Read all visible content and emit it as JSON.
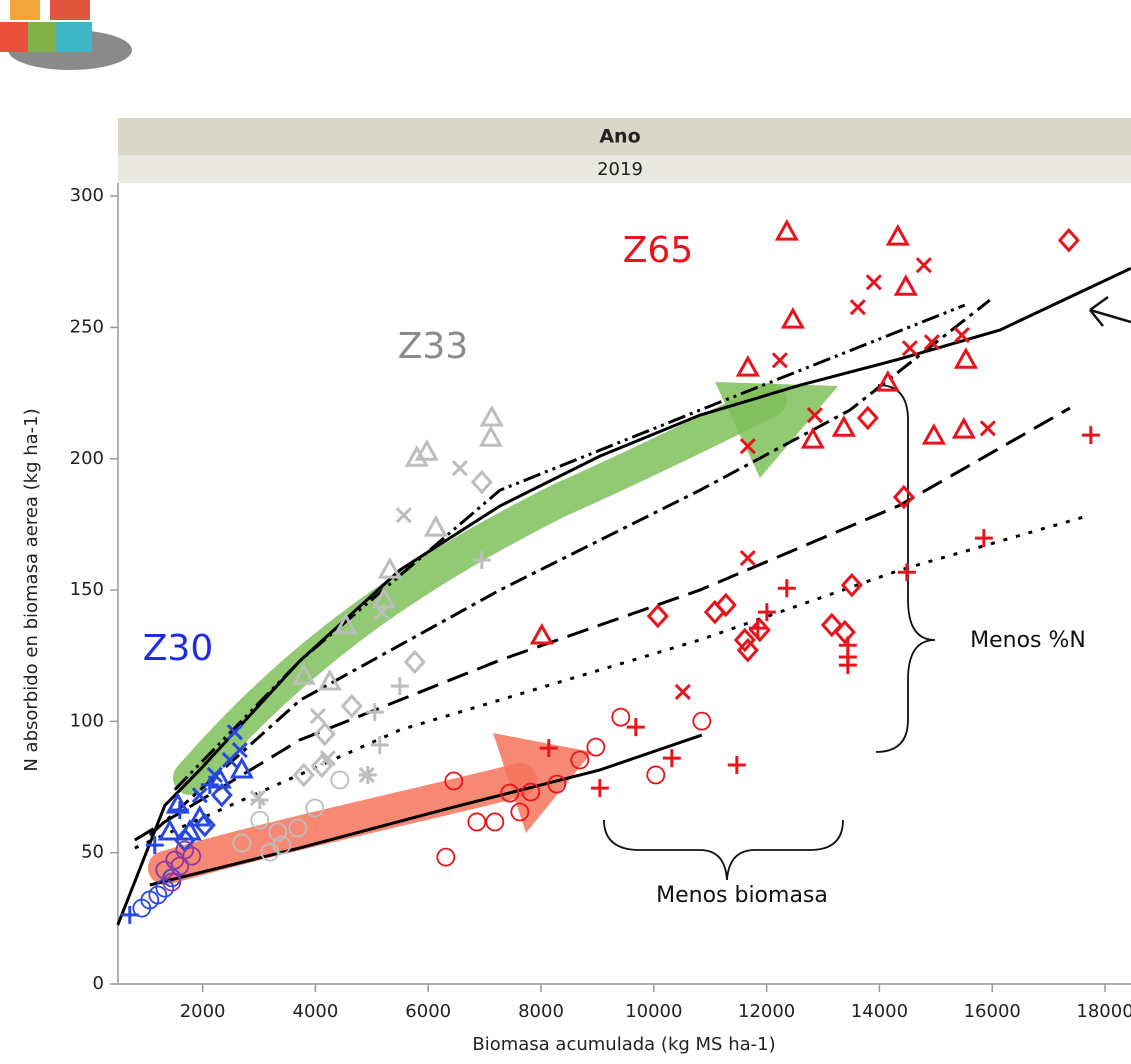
{
  "chart_data": {
    "type": "scatter",
    "facet_title": "Ano",
    "facet_label": "2019",
    "x_label": "Biomasa acumulada (kg MS ha-1)",
    "y_label": "N absorbido en biomasa aerea (kg ha-1)",
    "annotations": [
      {
        "text": "Z65",
        "color": "#e8141c"
      },
      {
        "text": "Z33",
        "color": "#8a8a8a"
      },
      {
        "text": "Z30",
        "color": "#1f2be0"
      },
      {
        "text": "Menos %N",
        "color": "#111111"
      },
      {
        "text": "Menos biomasa",
        "color": "#111111"
      }
    ],
    "xlim": [
      500,
      18460
    ],
    "ylim": [
      0,
      305
    ],
    "xticks": [
      2000,
      4000,
      6000,
      8000,
      10000,
      12000,
      14000,
      16000,
      18000
    ],
    "yticks": [
      0,
      50,
      100,
      150,
      200,
      250,
      300
    ],
    "series": [
      {
        "marker": "triangle",
        "color": "#e8141c",
        "x": [
          12358,
          14326,
          14468,
          12465,
          15532,
          11667,
          14149,
          12819,
          13369,
          14965,
          15496,
          8014
        ],
        "values": [
          286.3,
          284.4,
          265.3,
          252.8,
          237.5,
          234.5,
          228.8,
          207.1,
          211.6,
          208.6,
          210.9,
          132.5
        ]
      },
      {
        "marker": "x",
        "color": "#e8141c",
        "x": [
          14787,
          13901,
          13617,
          12234,
          12855,
          14539,
          14929,
          15461,
          15922,
          11667,
          10514,
          11667
        ],
        "values": [
          273.7,
          267.2,
          257.7,
          237.5,
          216.6,
          242.1,
          244.4,
          247.1,
          211.6,
          162.2,
          111.2,
          204.8
        ]
      },
      {
        "marker": "diamond",
        "color": "#e8141c",
        "x": [
          17358,
          13794,
          14433,
          13511,
          10071,
          11082,
          11277,
          11613,
          11667,
          11879,
          13156,
          13387
        ],
        "values": [
          283.2,
          215.5,
          185.4,
          151.9,
          140.1,
          141.6,
          144.3,
          131,
          127.1,
          134.8,
          136.7,
          134
        ]
      },
      {
        "marker": "plus",
        "color": "#e8141c",
        "x": [
          17748,
          15851,
          14486,
          12358,
          12004,
          11844,
          13440,
          13440,
          13440,
          9681,
          10319,
          8138,
          11472,
          9043
        ],
        "values": [
          209,
          169.8,
          156.8,
          150.7,
          141.6,
          135.5,
          129,
          124.5,
          121.4,
          97.8,
          86,
          89.8,
          83.4,
          74.6
        ]
      },
      {
        "marker": "circle",
        "color": "#e8141c",
        "x": [
          9415,
          10851,
          8972,
          8688,
          10035,
          6454,
          8280,
          7447,
          7819,
          7624,
          6862,
          7181,
          6312
        ],
        "values": [
          101.6,
          100.1,
          90.2,
          85.3,
          79.6,
          77.3,
          76.1,
          72.7,
          73.1,
          65.5,
          61.7,
          61.7,
          48.3
        ]
      },
      {
        "marker": "triangle",
        "color": "#bdbdbd",
        "x": [
          7128,
          7110,
          5975,
          5798,
          6135,
          5319,
          5213,
          4539,
          4255,
          3794
        ],
        "values": [
          215.5,
          207.8,
          202.5,
          200.2,
          173.6,
          157.6,
          146.2,
          136.3,
          115,
          117.2
        ]
      },
      {
        "marker": "x",
        "color": "#bdbdbd",
        "x": [
          6560,
          5567,
          5177,
          4043,
          4220,
          4911,
          2979
        ],
        "values": [
          196.4,
          178.5,
          141.6,
          102,
          86,
          79.6,
          70.8
        ]
      },
      {
        "marker": "diamond",
        "color": "#bdbdbd",
        "x": [
          6950,
          5762,
          4645,
          4167,
          3794,
          4113
        ],
        "values": [
          191.1,
          122.6,
          105.8,
          95.2,
          79.6,
          83
        ]
      },
      {
        "marker": "plus",
        "color": "#bdbdbd",
        "x": [
          6950,
          5496,
          5053,
          5142,
          4929,
          3014
        ],
        "values": [
          161.4,
          113.4,
          103.5,
          91,
          79.6,
          70
        ]
      },
      {
        "marker": "circle",
        "color": "#bdbdbd",
        "x": [
          4433,
          3989,
          3014,
          3333,
          3688,
          2695,
          3191,
          3404
        ],
        "values": [
          77.7,
          67,
          62.4,
          57.9,
          59.4,
          53.7,
          50.2,
          52.9
        ]
      },
      {
        "marker": "x",
        "color": "#2848e0",
        "x": [
          2571,
          2660,
          2482,
          2216,
          1950
        ],
        "values": [
          95.9,
          89.1,
          85.3,
          79.6,
          71.9
        ]
      },
      {
        "marker": "triangle",
        "color": "#2848e0",
        "x": [
          2695,
          2305,
          1560,
          1950,
          1418,
          1773
        ],
        "values": [
          81.5,
          77.7,
          68.1,
          63.2,
          57.9,
          57.9
        ]
      },
      {
        "marker": "plus",
        "color": "#2848e0",
        "x": [
          2128,
          1596,
          1152,
          709
        ],
        "values": [
          75.8,
          66.2,
          52.9,
          26.3
        ]
      },
      {
        "marker": "diamond",
        "color": "#2848e0",
        "x": [
          2340,
          2039,
          1684
        ],
        "values": [
          71.9,
          60.5,
          54.8
        ]
      },
      {
        "marker": "circle",
        "color": "#2848e0",
        "x": [
          922,
          1064,
          1206,
          1330,
          1454
        ],
        "values": [
          28.9,
          32,
          33.9,
          36.5,
          40.4
        ]
      },
      {
        "marker": "circle",
        "color": "#8e3a9e",
        "x": [
          1330,
          1507,
          1684,
          1596,
          1809,
          1454
        ],
        "values": [
          43.4,
          47.2,
          51,
          44.9,
          48.7,
          38.8
        ]
      }
    ],
    "lines": [
      {
        "style": "solid",
        "x": [
          496,
          1330,
          1950,
          3723,
          5496,
          7270,
          9043,
          10816,
          12589,
          14362,
          16135,
          18457
        ],
        "values": [
          22.5,
          68,
          81.5,
          123,
          157.6,
          182,
          201,
          216.6,
          228,
          238,
          249,
          272.5
        ]
      },
      {
        "style": "solid",
        "x": [
          1064,
          3723,
          6383,
          9043,
          10851
        ],
        "values": [
          37.7,
          51.8,
          67,
          81.5,
          94.8
        ]
      },
      {
        "style": "dash-dot-dot",
        "x": [
          1507,
          3723,
          7270,
          10816,
          15514
        ],
        "values": [
          74,
          123,
          188,
          218.5,
          258.5
        ]
      },
      {
        "style": "dash-dot",
        "x": [
          1064,
          3723,
          7270,
          10816,
          13475,
          15957
        ],
        "values": [
          56.7,
          108,
          150,
          188,
          218.5,
          260.4
        ]
      },
      {
        "style": "dash",
        "x": [
          798,
          3723,
          7270,
          10816,
          14362,
          17376
        ],
        "values": [
          54.8,
          92.9,
          123.3,
          150,
          182.3,
          219.3
        ]
      },
      {
        "style": "dot",
        "x": [
          798,
          5496,
          10816,
          14362,
          17730
        ],
        "values": [
          51.8,
          96.7,
          131,
          157.6,
          178.5
        ]
      }
    ]
  }
}
